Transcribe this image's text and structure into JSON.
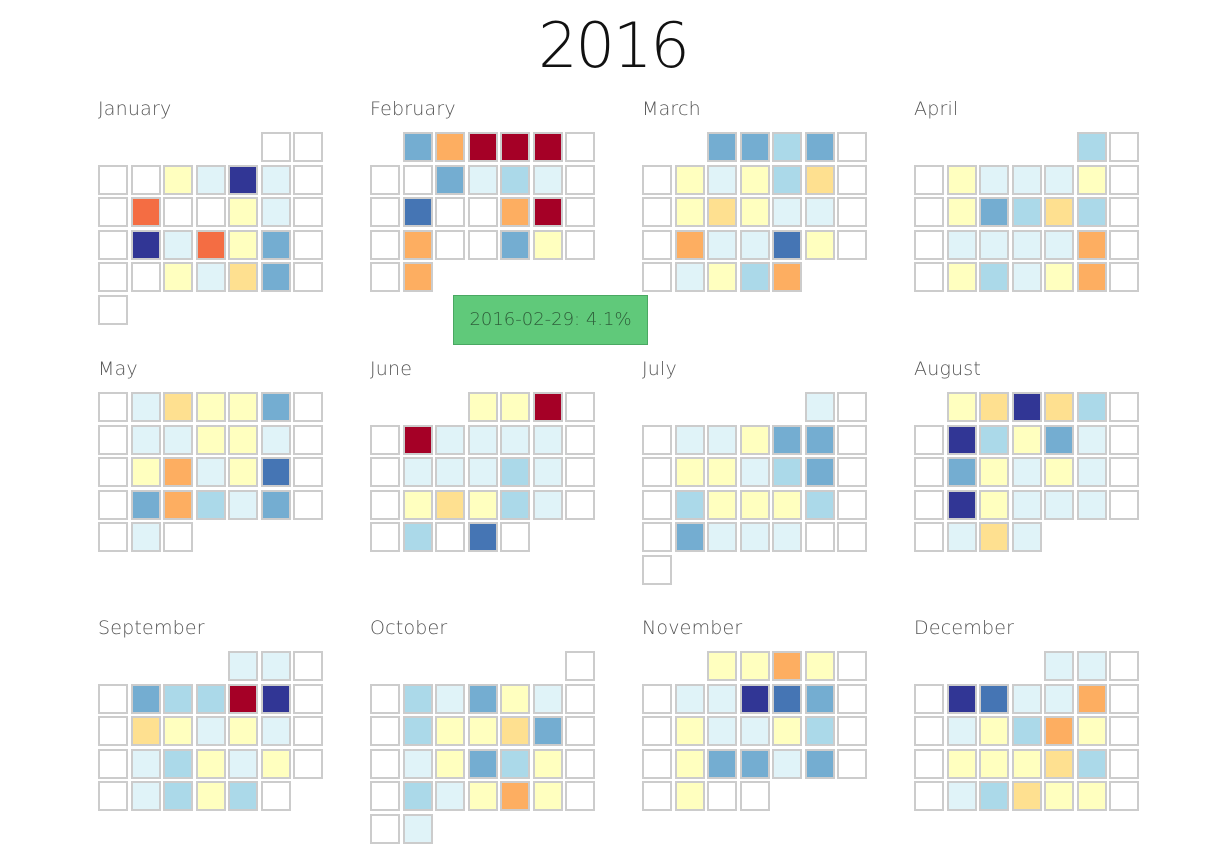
{
  "year_title": "2016",
  "tooltip": {
    "text": "2016-02-29: 4.1%"
  },
  "chart_data": {
    "type": "heatmap",
    "title": "2016",
    "layout": "calendar-months-4x3",
    "week_start": "Sunday",
    "color_scale": "diverging RdYlBu (red = high, blue = low)",
    "legend": "none",
    "months": [
      {
        "name": "January",
        "values": [
          null,
          null,
          6,
          5,
          1,
          5,
          9,
          null,
          null,
          6,
          5,
          1,
          5,
          9,
          6,
          3,
          null,
          6,
          5,
          7,
          3,
          null,
          3,
          6,
          5,
          2,
          3,
          null,
          5,
          6
        ]
      },
      {
        "name": "February",
        "values": [
          3,
          8,
          10,
          10,
          10,
          null,
          3,
          5,
          4,
          5,
          2,
          null,
          null,
          8,
          10,
          8,
          null,
          null,
          3,
          6,
          8,
          null,
          8,
          null,
          8
        ]
      },
      {
        "name": "March",
        "values": [
          3,
          3,
          4,
          3,
          6,
          5,
          6,
          4,
          7,
          6,
          7,
          6,
          5,
          5,
          8,
          5,
          5,
          2,
          6,
          5,
          6,
          4,
          8,
          2,
          3,
          4
        ]
      },
      {
        "name": "April",
        "values": [
          4,
          6,
          5,
          5,
          5,
          6,
          6,
          3,
          4,
          7,
          4,
          5,
          5,
          5,
          5,
          8,
          6,
          4,
          5,
          6,
          8,
          5,
          6,
          6
        ]
      },
      {
        "name": "May",
        "values": [
          5,
          7,
          6,
          6,
          3,
          5,
          5,
          6,
          6,
          5,
          6,
          8,
          5,
          6,
          2,
          3,
          8,
          4,
          5,
          3,
          5
        ]
      },
      {
        "name": "June",
        "values": [
          6,
          6,
          10,
          10,
          5,
          5,
          5,
          5,
          5,
          5,
          5,
          4,
          5,
          6,
          7,
          6,
          4,
          5,
          4,
          null,
          2
        ]
      },
      {
        "name": "July",
        "values": [
          5,
          5,
          5,
          6,
          3,
          3,
          6,
          6,
          5,
          4,
          3,
          4,
          6,
          6,
          6,
          4,
          3,
          5,
          5,
          5
        ]
      },
      {
        "name": "August",
        "values": [
          6,
          7,
          1,
          7,
          4,
          1,
          4,
          6,
          3,
          5,
          3,
          6,
          5,
          6,
          5,
          1,
          6,
          5,
          5,
          5,
          5,
          7,
          5
        ]
      },
      {
        "name": "September",
        "values": [
          5,
          5,
          3,
          4,
          4,
          10,
          1,
          7,
          6,
          5,
          6,
          5,
          5,
          4,
          6,
          5,
          6,
          5,
          4,
          6,
          4
        ]
      },
      {
        "name": "October",
        "values": [
          4,
          5,
          3,
          6,
          5,
          4,
          6,
          6,
          7,
          3,
          5,
          6,
          3,
          4,
          6,
          4,
          5,
          6,
          8,
          6,
          5
        ]
      },
      {
        "name": "November",
        "values": [
          6,
          6,
          8,
          6,
          5,
          5,
          1,
          2,
          3,
          6,
          5,
          5,
          6,
          4,
          6,
          3,
          3,
          5,
          3,
          6
        ]
      },
      {
        "name": "December",
        "values": [
          5,
          5,
          1,
          2,
          5,
          5,
          8,
          5,
          6,
          4,
          8,
          6,
          6,
          6,
          6,
          7,
          4,
          5,
          4,
          7,
          6,
          6
        ]
      }
    ]
  }
}
